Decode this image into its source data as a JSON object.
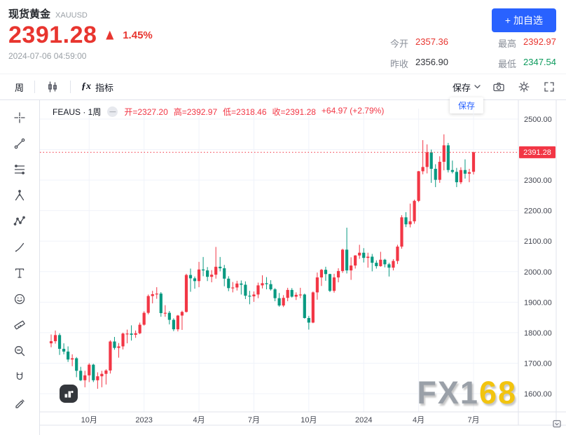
{
  "colors": {
    "up": "#f23645",
    "down": "#089981",
    "price_red": "#e8352f",
    "green": "#0b9a5c",
    "accent_blue": "#2962ff",
    "gold": "#f2c40f"
  },
  "header": {
    "title": "现货黄金",
    "symbol": "XAUUSD",
    "price": "2391.28",
    "arrow": "▲",
    "change_percent": "1.45%",
    "timestamp": "2024-07-06 04:59:00",
    "stats": [
      {
        "key": "open",
        "label": "今开",
        "value": "2357.36",
        "tone": "red"
      },
      {
        "key": "high",
        "label": "最高",
        "value": "2392.97",
        "tone": "red"
      },
      {
        "key": "prev-close",
        "label": "昨收",
        "value": "2356.90",
        "tone": "dark"
      },
      {
        "key": "low",
        "label": "最低",
        "value": "2347.54",
        "tone": "green"
      }
    ],
    "add_button": "+ 加自选"
  },
  "toolbar": {
    "interval": "周",
    "fx_glyph": "ƒx",
    "indicators": "指标",
    "save": "保存",
    "save_menu_item": "保存"
  },
  "drawing_tools": [
    {
      "name": "crosshair"
    },
    {
      "name": "trend-line"
    },
    {
      "name": "fib-retracement"
    },
    {
      "name": "pitchfork"
    },
    {
      "name": "pattern"
    },
    {
      "name": "brush"
    },
    {
      "name": "text"
    },
    {
      "name": "emoji"
    },
    {
      "name": "measure"
    },
    {
      "name": "zoom"
    },
    {
      "name": "magnet"
    },
    {
      "name": "edit"
    }
  ],
  "chart": {
    "legend_symbol": "FEAUS · 1周",
    "legend_collapse_glyph": "—",
    "ohlc": [
      "开=2327.20",
      "高=2392.97",
      "低=2318.46",
      "收=2391.28",
      "+64.97 (+2.79%)"
    ],
    "price_label": "2391.28",
    "y_ticks": [
      "2500.00",
      "2400.00",
      "2300.00",
      "2200.00",
      "2100.00",
      "2000.00",
      "1900.00",
      "1800.00",
      "1700.00",
      "1600.00"
    ],
    "x_ticks": [
      {
        "label": "10月",
        "i": 9
      },
      {
        "label": "2023",
        "i": 22
      },
      {
        "label": "4月",
        "i": 35
      },
      {
        "label": "7月",
        "i": 48
      },
      {
        "label": "10月",
        "i": 61
      },
      {
        "label": "2024",
        "i": 74
      },
      {
        "label": "4月",
        "i": 87
      },
      {
        "label": "7月",
        "i": 100
      }
    ],
    "watermark_gray": "FX1",
    "watermark_gold": "68"
  },
  "chart_data": {
    "type": "candlestick",
    "symbol": "XAUUSD",
    "interval": "1周",
    "up_color": "#f23645",
    "down_color": "#089981",
    "ylim": [
      1540,
      2535
    ],
    "last_close": 2391.28,
    "candles": [
      [
        1765,
        1794,
        1752,
        1772
      ],
      [
        1772,
        1807,
        1764,
        1792
      ],
      [
        1792,
        1798,
        1727,
        1747
      ],
      [
        1747,
        1765,
        1729,
        1738
      ],
      [
        1738,
        1755,
        1704,
        1712
      ],
      [
        1712,
        1729,
        1690,
        1716
      ],
      [
        1716,
        1720,
        1654,
        1675
      ],
      [
        1675,
        1688,
        1641,
        1644
      ],
      [
        1644,
        1675,
        1621,
        1660
      ],
      [
        1660,
        1700,
        1638,
        1695
      ],
      [
        1695,
        1698,
        1638,
        1644
      ],
      [
        1644,
        1670,
        1616,
        1657
      ],
      [
        1657,
        1675,
        1621,
        1665
      ],
      [
        1665,
        1680,
        1630,
        1676
      ],
      [
        1676,
        1775,
        1666,
        1771
      ],
      [
        1771,
        1786,
        1744,
        1750
      ],
      [
        1750,
        1766,
        1718,
        1755
      ],
      [
        1755,
        1800,
        1745,
        1797
      ],
      [
        1797,
        1810,
        1765,
        1797
      ],
      [
        1797,
        1824,
        1774,
        1793
      ],
      [
        1793,
        1807,
        1783,
        1798
      ],
      [
        1798,
        1833,
        1795,
        1826
      ],
      [
        1826,
        1870,
        1823,
        1865
      ],
      [
        1865,
        1925,
        1860,
        1920
      ],
      [
        1920,
        1937,
        1896,
        1926
      ],
      [
        1926,
        1949,
        1911,
        1928
      ],
      [
        1928,
        1933,
        1852,
        1864
      ],
      [
        1864,
        1890,
        1852,
        1865
      ],
      [
        1865,
        1871,
        1827,
        1842
      ],
      [
        1842,
        1847,
        1805,
        1811
      ],
      [
        1811,
        1858,
        1804,
        1856
      ],
      [
        1856,
        1872,
        1809,
        1868
      ],
      [
        1868,
        1993,
        1866,
        1989
      ],
      [
        1989,
        2010,
        1934,
        1978
      ],
      [
        1978,
        1984,
        1944,
        1969
      ],
      [
        1969,
        2032,
        1949,
        2007
      ],
      [
        2007,
        2048,
        1985,
        2004
      ],
      [
        2004,
        2015,
        1969,
        1983
      ],
      [
        1983,
        2005,
        1965,
        1990
      ],
      [
        1990,
        2081,
        1977,
        2016
      ],
      [
        2016,
        2048,
        2001,
        2011
      ],
      [
        2011,
        2022,
        1952,
        1977
      ],
      [
        1977,
        1985,
        1936,
        1946
      ],
      [
        1946,
        1966,
        1932,
        1948
      ],
      [
        1948,
        1970,
        1938,
        1961
      ],
      [
        1961,
        1971,
        1925,
        1957
      ],
      [
        1957,
        1968,
        1910,
        1921
      ],
      [
        1921,
        1937,
        1893,
        1919
      ],
      [
        1919,
        1935,
        1901,
        1925
      ],
      [
        1925,
        1964,
        1913,
        1955
      ],
      [
        1955,
        1988,
        1945,
        1962
      ],
      [
        1962,
        1982,
        1942,
        1959
      ],
      [
        1959,
        1972,
        1938,
        1942
      ],
      [
        1942,
        1946,
        1903,
        1913
      ],
      [
        1913,
        1930,
        1885,
        1889
      ],
      [
        1889,
        1923,
        1884,
        1914
      ],
      [
        1914,
        1947,
        1903,
        1940
      ],
      [
        1940,
        1946,
        1915,
        1918
      ],
      [
        1918,
        1932,
        1907,
        1924
      ],
      [
        1924,
        1947,
        1913,
        1925
      ],
      [
        1925,
        1928,
        1846,
        1848
      ],
      [
        1848,
        1855,
        1810,
        1833
      ],
      [
        1833,
        1935,
        1831,
        1932
      ],
      [
        1932,
        1997,
        1908,
        1981
      ],
      [
        1981,
        2009,
        1953,
        2006
      ],
      [
        2006,
        2016,
        1970,
        1992
      ],
      [
        1992,
        1993,
        1933,
        1937
      ],
      [
        1937,
        1993,
        1931,
        1981
      ],
      [
        1981,
        2011,
        1965,
        2002
      ],
      [
        2002,
        2075,
        1996,
        2072
      ],
      [
        2072,
        2144,
        1994,
        2004
      ],
      [
        2004,
        2047,
        1973,
        2020
      ],
      [
        2020,
        2054,
        2010,
        2053
      ],
      [
        2053,
        2088,
        2042,
        2062
      ],
      [
        2062,
        2077,
        2030,
        2045
      ],
      [
        2045,
        2062,
        2013,
        2049
      ],
      [
        2049,
        2058,
        2001,
        2029
      ],
      [
        2029,
        2037,
        2010,
        2018
      ],
      [
        2018,
        2065,
        2016,
        2039
      ],
      [
        2039,
        2042,
        2014,
        2024
      ],
      [
        2024,
        2029,
        1984,
        2013
      ],
      [
        2013,
        2041,
        2004,
        2035
      ],
      [
        2035,
        2088,
        2025,
        2082
      ],
      [
        2082,
        2185,
        2075,
        2178
      ],
      [
        2178,
        2195,
        2146,
        2155
      ],
      [
        2155,
        2223,
        2145,
        2165
      ],
      [
        2165,
        2236,
        2157,
        2232
      ],
      [
        2232,
        2330,
        2228,
        2329
      ],
      [
        2329,
        2431,
        2319,
        2343
      ],
      [
        2343,
        2417,
        2322,
        2391
      ],
      [
        2391,
        2400,
        2291,
        2337
      ],
      [
        2337,
        2352,
        2277,
        2301
      ],
      [
        2301,
        2378,
        2291,
        2360
      ],
      [
        2360,
        2450,
        2332,
        2414
      ],
      [
        2414,
        2422,
        2325,
        2333
      ],
      [
        2333,
        2364,
        2322,
        2327
      ],
      [
        2327,
        2340,
        2277,
        2293
      ],
      [
        2293,
        2342,
        2287,
        2333
      ],
      [
        2333,
        2368,
        2305,
        2321
      ],
      [
        2321,
        2337,
        2293,
        2326
      ],
      [
        2327.2,
        2392.97,
        2318.46,
        2391.28
      ]
    ]
  }
}
